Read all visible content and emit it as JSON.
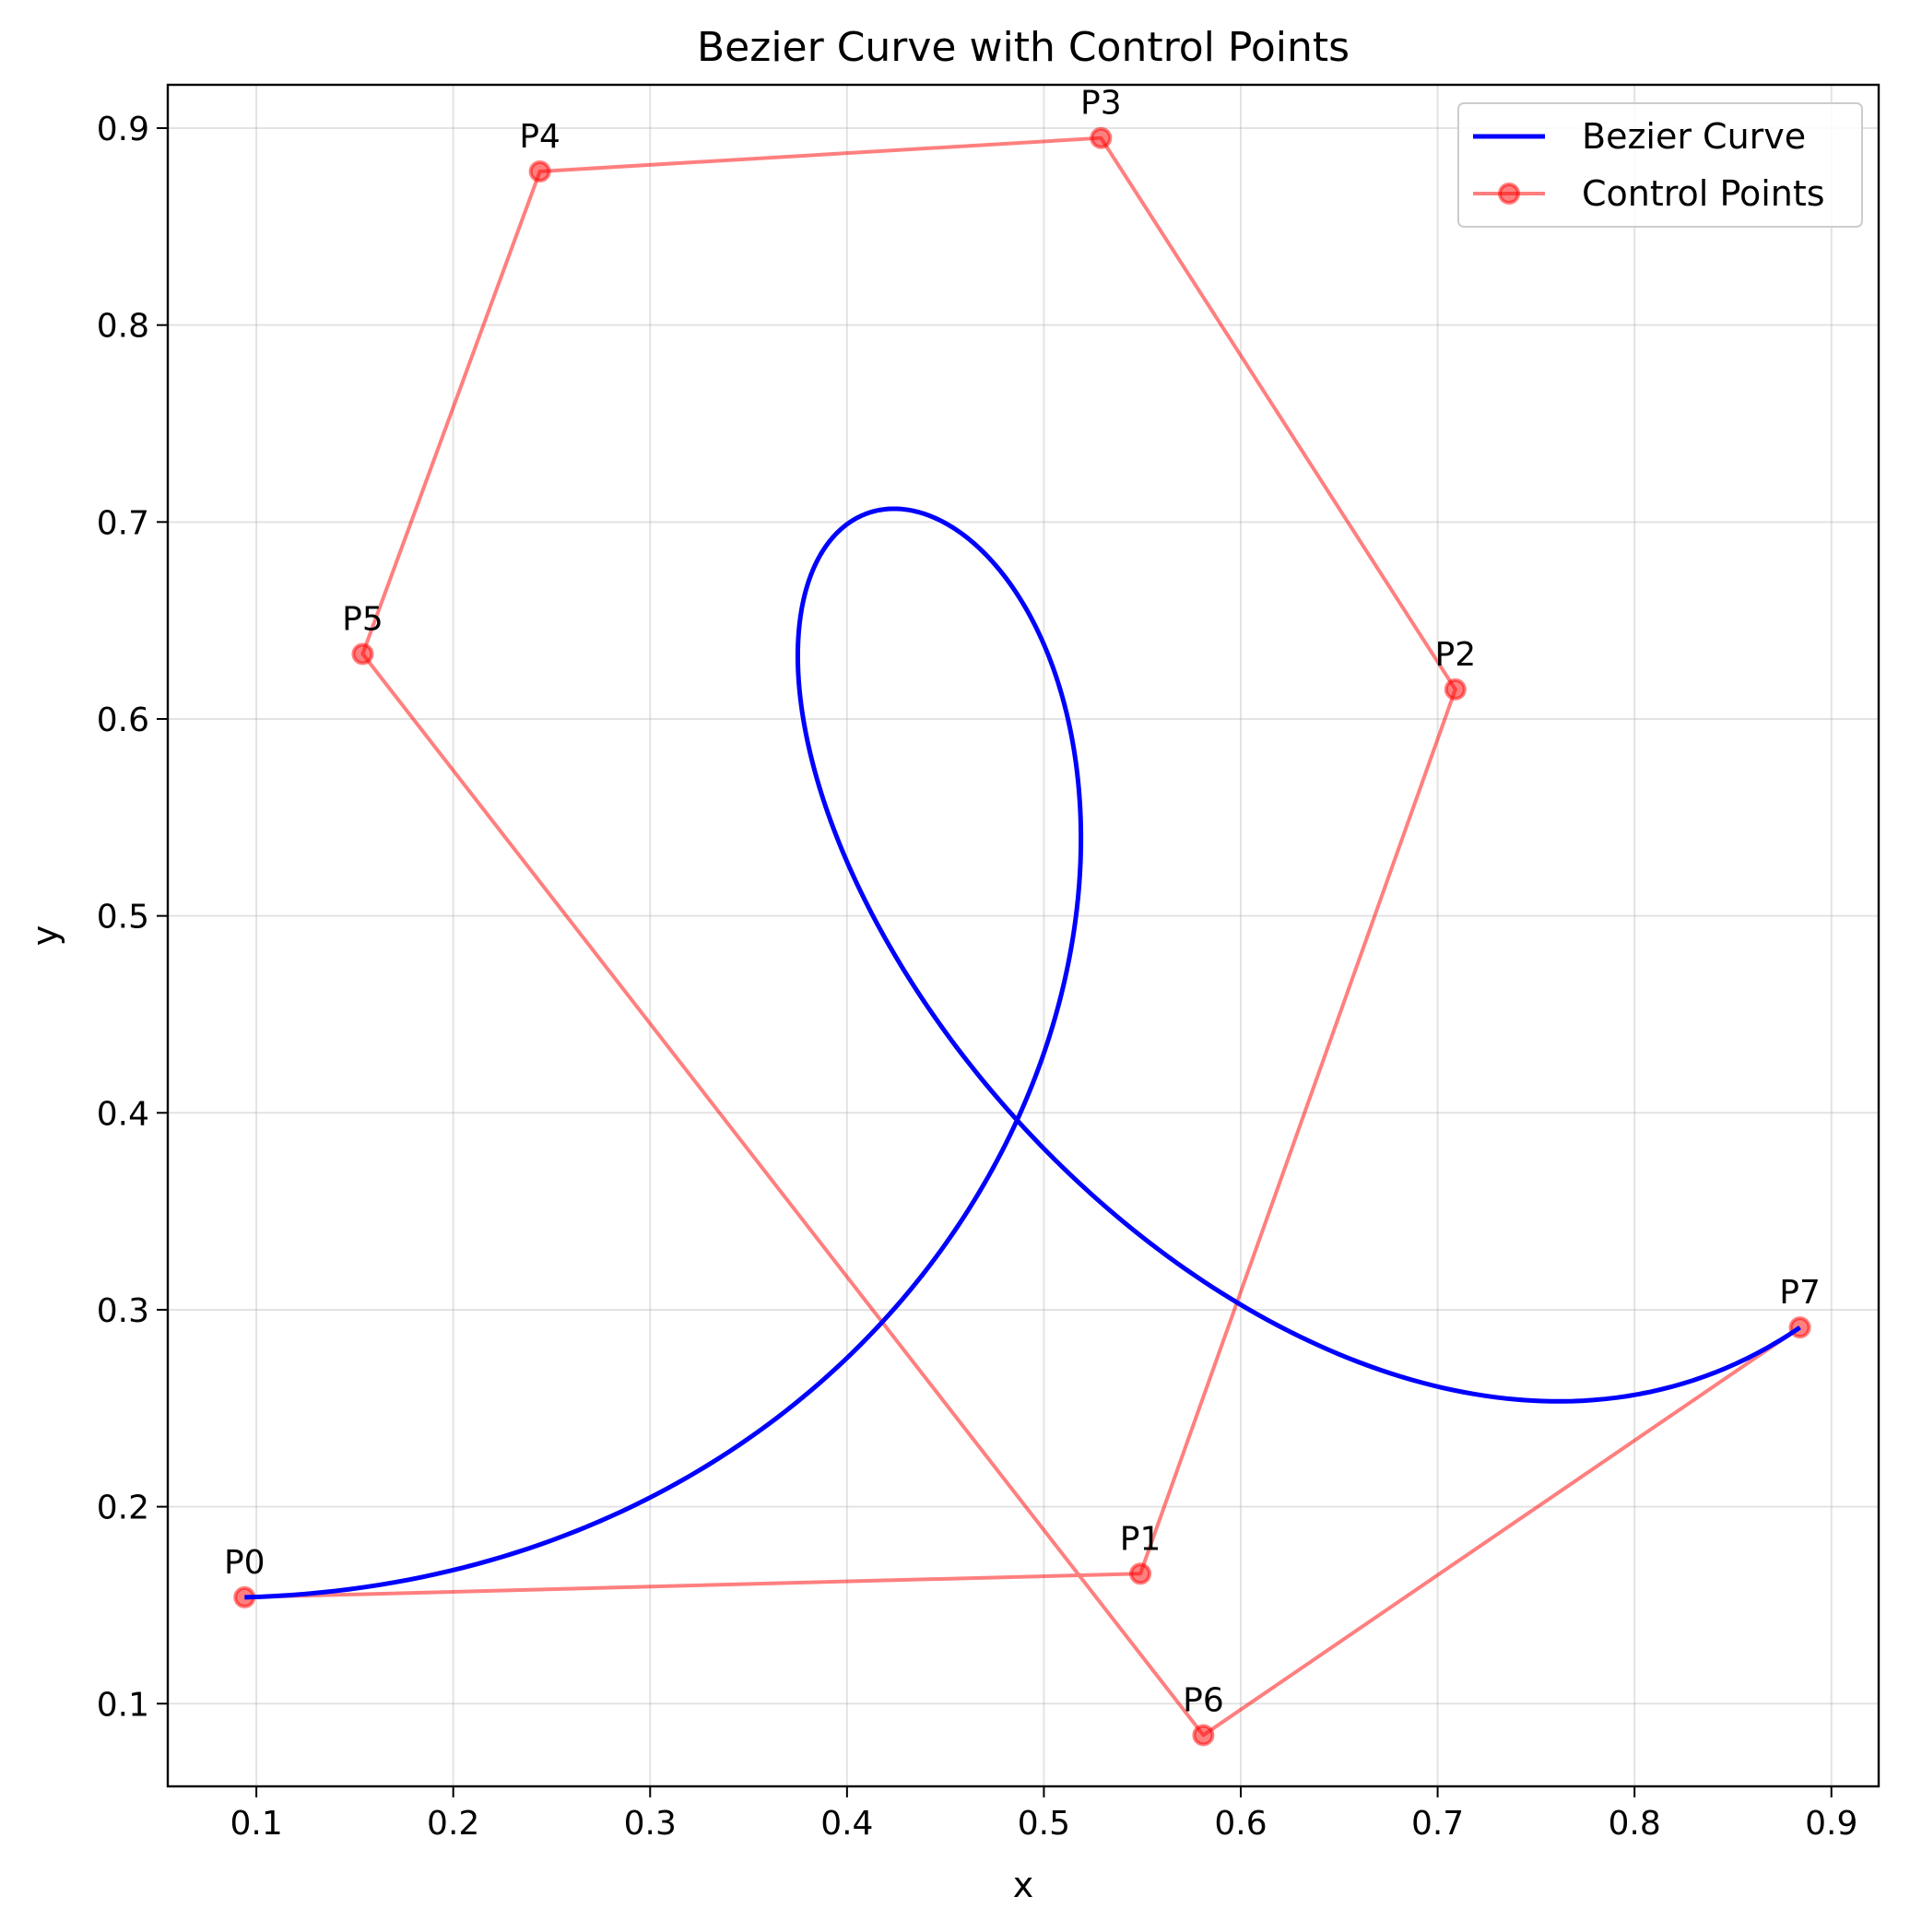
{
  "chart_data": {
    "type": "line",
    "title": "Bezier Curve with Control Points",
    "xlabel": "x",
    "ylabel": "y",
    "xlim": [
      0.055,
      0.924
    ],
    "ylim": [
      0.058,
      0.922
    ],
    "xticks": [
      0.1,
      0.2,
      0.3,
      0.4,
      0.5,
      0.6,
      0.7,
      0.8,
      0.9
    ],
    "yticks": [
      0.1,
      0.2,
      0.3,
      0.4,
      0.5,
      0.6,
      0.7,
      0.8,
      0.9
    ],
    "grid": true,
    "legend_position": "top-right",
    "series": [
      {
        "name": "Bezier Curve",
        "color": "#0000ff",
        "kind": "bezier-from-control-points"
      },
      {
        "name": "Control Points",
        "color": "#ff0000",
        "kind": "polyline-with-markers",
        "points": [
          {
            "label": "P0",
            "x": 0.094,
            "y": 0.154
          },
          {
            "label": "P1",
            "x": 0.549,
            "y": 0.166
          },
          {
            "label": "P2",
            "x": 0.709,
            "y": 0.615
          },
          {
            "label": "P3",
            "x": 0.529,
            "y": 0.895
          },
          {
            "label": "P4",
            "x": 0.244,
            "y": 0.878
          },
          {
            "label": "P5",
            "x": 0.154,
            "y": 0.633
          },
          {
            "label": "P6",
            "x": 0.581,
            "y": 0.084
          },
          {
            "label": "P7",
            "x": 0.884,
            "y": 0.291
          }
        ]
      }
    ]
  }
}
